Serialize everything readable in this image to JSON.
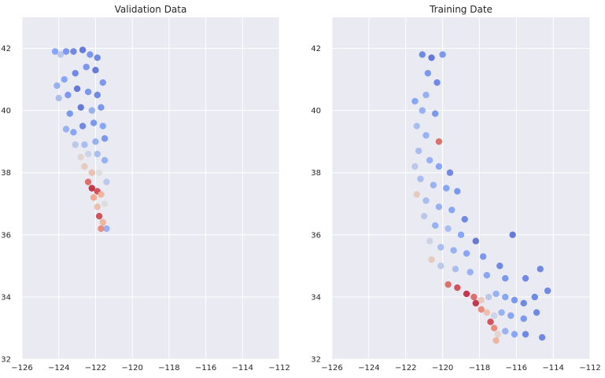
{
  "chart_data": [
    {
      "type": "scatter",
      "title": "Validation Data",
      "xlim": [
        -126,
        -112
      ],
      "ylim": [
        32,
        43
      ],
      "xticks": [
        -126,
        -124,
        -122,
        -120,
        -118,
        -116,
        -114,
        -112
      ],
      "yticks": [
        32,
        34,
        36,
        38,
        40,
        42
      ],
      "xtick_labels": [
        "−126",
        "−124",
        "−122",
        "−120",
        "−118",
        "−116",
        "−114",
        "−112"
      ],
      "ytick_labels": [
        "32",
        "34",
        "36",
        "38",
        "40",
        "42"
      ],
      "grid": true,
      "colormap": "coolwarm",
      "points": [
        {
          "x": -124.2,
          "y": 41.9,
          "c": 0.25
        },
        {
          "x": -123.9,
          "y": 41.8,
          "c": 0.4
        },
        {
          "x": -123.6,
          "y": 41.9,
          "c": 0.2
        },
        {
          "x": -123.2,
          "y": 41.9,
          "c": 0.15
        },
        {
          "x": -122.7,
          "y": 41.95,
          "c": 0.1
        },
        {
          "x": -122.3,
          "y": 41.8,
          "c": 0.2
        },
        {
          "x": -121.9,
          "y": 41.7,
          "c": 0.15
        },
        {
          "x": -122.0,
          "y": 41.3,
          "c": 0.1
        },
        {
          "x": -122.5,
          "y": 41.4,
          "c": 0.2
        },
        {
          "x": -123.1,
          "y": 41.2,
          "c": 0.15
        },
        {
          "x": -123.7,
          "y": 41.0,
          "c": 0.25
        },
        {
          "x": -124.1,
          "y": 40.8,
          "c": 0.3
        },
        {
          "x": -124.0,
          "y": 40.4,
          "c": 0.35
        },
        {
          "x": -123.5,
          "y": 40.5,
          "c": 0.2
        },
        {
          "x": -123.0,
          "y": 40.7,
          "c": 0.1
        },
        {
          "x": -122.4,
          "y": 40.6,
          "c": 0.2
        },
        {
          "x": -121.9,
          "y": 40.5,
          "c": 0.15
        },
        {
          "x": -121.6,
          "y": 40.9,
          "c": 0.2
        },
        {
          "x": -121.7,
          "y": 40.1,
          "c": 0.2
        },
        {
          "x": -122.2,
          "y": 40.0,
          "c": 0.3
        },
        {
          "x": -122.8,
          "y": 40.1,
          "c": 0.1
        },
        {
          "x": -123.4,
          "y": 39.9,
          "c": 0.2
        },
        {
          "x": -123.6,
          "y": 39.4,
          "c": 0.3
        },
        {
          "x": -123.2,
          "y": 39.3,
          "c": 0.25
        },
        {
          "x": -122.7,
          "y": 39.5,
          "c": 0.15
        },
        {
          "x": -122.1,
          "y": 39.6,
          "c": 0.2
        },
        {
          "x": -121.6,
          "y": 39.5,
          "c": 0.25
        },
        {
          "x": -121.5,
          "y": 39.1,
          "c": 0.2
        },
        {
          "x": -122.0,
          "y": 39.0,
          "c": 0.3
        },
        {
          "x": -122.6,
          "y": 38.9,
          "c": 0.35
        },
        {
          "x": -123.1,
          "y": 38.9,
          "c": 0.4
        },
        {
          "x": -122.8,
          "y": 38.5,
          "c": 0.55
        },
        {
          "x": -122.4,
          "y": 38.6,
          "c": 0.45
        },
        {
          "x": -121.9,
          "y": 38.6,
          "c": 0.35
        },
        {
          "x": -121.5,
          "y": 38.4,
          "c": 0.3
        },
        {
          "x": -122.6,
          "y": 38.2,
          "c": 0.6
        },
        {
          "x": -122.2,
          "y": 38.0,
          "c": 0.65
        },
        {
          "x": -121.8,
          "y": 38.0,
          "c": 0.5
        },
        {
          "x": -121.4,
          "y": 37.7,
          "c": 0.4
        },
        {
          "x": -122.4,
          "y": 37.7,
          "c": 0.85
        },
        {
          "x": -122.2,
          "y": 37.5,
          "c": 0.95
        },
        {
          "x": -121.9,
          "y": 37.4,
          "c": 0.9
        },
        {
          "x": -122.1,
          "y": 37.2,
          "c": 0.75
        },
        {
          "x": -121.7,
          "y": 37.3,
          "c": 0.7
        },
        {
          "x": -121.5,
          "y": 37.0,
          "c": 0.5
        },
        {
          "x": -121.9,
          "y": 36.9,
          "c": 0.65
        },
        {
          "x": -121.8,
          "y": 36.6,
          "c": 0.9
        },
        {
          "x": -121.6,
          "y": 36.4,
          "c": 0.7
        },
        {
          "x": -121.4,
          "y": 36.2,
          "c": 0.3
        },
        {
          "x": -121.7,
          "y": 36.2,
          "c": 0.8
        }
      ]
    },
    {
      "type": "scatter",
      "title": "Training Date",
      "xlim": [
        -126,
        -112
      ],
      "ylim": [
        32,
        43
      ],
      "xticks": [
        -126,
        -124,
        -122,
        -120,
        -118,
        -116,
        -114,
        -112
      ],
      "yticks": [
        32,
        34,
        36,
        38,
        40,
        42
      ],
      "xtick_labels": [
        "−126",
        "−124",
        "−122",
        "−120",
        "−118",
        "−116",
        "−114",
        "−112"
      ],
      "ytick_labels": [
        "32",
        "34",
        "36",
        "38",
        "40",
        "42"
      ],
      "grid": true,
      "colormap": "coolwarm",
      "points": [
        {
          "x": -121.1,
          "y": 41.8,
          "c": 0.15
        },
        {
          "x": -120.6,
          "y": 41.7,
          "c": 0.1
        },
        {
          "x": -120.0,
          "y": 41.8,
          "c": 0.2
        },
        {
          "x": -120.8,
          "y": 41.2,
          "c": 0.2
        },
        {
          "x": -120.3,
          "y": 40.9,
          "c": 0.15
        },
        {
          "x": -120.9,
          "y": 40.5,
          "c": 0.3
        },
        {
          "x": -121.5,
          "y": 40.3,
          "c": 0.25
        },
        {
          "x": -121.1,
          "y": 40.0,
          "c": 0.3
        },
        {
          "x": -120.4,
          "y": 39.9,
          "c": 0.2
        },
        {
          "x": -121.4,
          "y": 39.5,
          "c": 0.35
        },
        {
          "x": -120.9,
          "y": 39.2,
          "c": 0.3
        },
        {
          "x": -120.2,
          "y": 39.0,
          "c": 0.85
        },
        {
          "x": -121.3,
          "y": 38.7,
          "c": 0.35
        },
        {
          "x": -120.7,
          "y": 38.4,
          "c": 0.3
        },
        {
          "x": -121.5,
          "y": 38.2,
          "c": 0.4
        },
        {
          "x": -120.2,
          "y": 38.2,
          "c": 0.25
        },
        {
          "x": -119.6,
          "y": 38.0,
          "c": 0.15
        },
        {
          "x": -121.2,
          "y": 37.8,
          "c": 0.35
        },
        {
          "x": -120.5,
          "y": 37.6,
          "c": 0.3
        },
        {
          "x": -119.8,
          "y": 37.5,
          "c": 0.25
        },
        {
          "x": -119.2,
          "y": 37.4,
          "c": 0.2
        },
        {
          "x": -121.4,
          "y": 37.3,
          "c": 0.6
        },
        {
          "x": -120.9,
          "y": 37.1,
          "c": 0.35
        },
        {
          "x": -120.2,
          "y": 36.9,
          "c": 0.3
        },
        {
          "x": -119.5,
          "y": 36.8,
          "c": 0.25
        },
        {
          "x": -118.8,
          "y": 36.5,
          "c": 0.15
        },
        {
          "x": -121.0,
          "y": 36.6,
          "c": 0.4
        },
        {
          "x": -120.4,
          "y": 36.3,
          "c": 0.3
        },
        {
          "x": -119.7,
          "y": 36.2,
          "c": 0.35
        },
        {
          "x": -119.0,
          "y": 36.0,
          "c": 0.25
        },
        {
          "x": -118.2,
          "y": 35.8,
          "c": 0.1
        },
        {
          "x": -116.2,
          "y": 36.0,
          "c": 0.1
        },
        {
          "x": -120.7,
          "y": 35.8,
          "c": 0.45
        },
        {
          "x": -120.1,
          "y": 35.6,
          "c": 0.35
        },
        {
          "x": -119.4,
          "y": 35.5,
          "c": 0.3
        },
        {
          "x": -118.7,
          "y": 35.4,
          "c": 0.25
        },
        {
          "x": -117.8,
          "y": 35.3,
          "c": 0.2
        },
        {
          "x": -116.9,
          "y": 35.0,
          "c": 0.15
        },
        {
          "x": -120.6,
          "y": 35.2,
          "c": 0.6
        },
        {
          "x": -120.1,
          "y": 35.0,
          "c": 0.4
        },
        {
          "x": -119.3,
          "y": 34.9,
          "c": 0.35
        },
        {
          "x": -118.5,
          "y": 34.8,
          "c": 0.3
        },
        {
          "x": -117.6,
          "y": 34.7,
          "c": 0.25
        },
        {
          "x": -116.6,
          "y": 34.6,
          "c": 0.2
        },
        {
          "x": -115.5,
          "y": 34.6,
          "c": 0.15
        },
        {
          "x": -114.7,
          "y": 34.9,
          "c": 0.15
        },
        {
          "x": -119.7,
          "y": 34.4,
          "c": 0.85
        },
        {
          "x": -119.2,
          "y": 34.3,
          "c": 0.9
        },
        {
          "x": -118.7,
          "y": 34.1,
          "c": 0.95
        },
        {
          "x": -118.3,
          "y": 34.0,
          "c": 0.85
        },
        {
          "x": -117.9,
          "y": 33.9,
          "c": 0.6
        },
        {
          "x": -117.5,
          "y": 34.0,
          "c": 0.4
        },
        {
          "x": -117.1,
          "y": 34.1,
          "c": 0.3
        },
        {
          "x": -116.6,
          "y": 34.0,
          "c": 0.25
        },
        {
          "x": -116.1,
          "y": 33.9,
          "c": 0.2
        },
        {
          "x": -115.6,
          "y": 33.8,
          "c": 0.15
        },
        {
          "x": -115.0,
          "y": 34.0,
          "c": 0.15
        },
        {
          "x": -114.3,
          "y": 34.2,
          "c": 0.15
        },
        {
          "x": -118.2,
          "y": 33.8,
          "c": 0.95
        },
        {
          "x": -117.9,
          "y": 33.6,
          "c": 0.8
        },
        {
          "x": -117.6,
          "y": 33.5,
          "c": 0.65
        },
        {
          "x": -117.2,
          "y": 33.4,
          "c": 0.45
        },
        {
          "x": -116.8,
          "y": 33.5,
          "c": 0.3
        },
        {
          "x": -116.3,
          "y": 33.4,
          "c": 0.25
        },
        {
          "x": -115.6,
          "y": 33.3,
          "c": 0.2
        },
        {
          "x": -114.9,
          "y": 33.5,
          "c": 0.15
        },
        {
          "x": -117.4,
          "y": 33.2,
          "c": 0.9
        },
        {
          "x": -117.2,
          "y": 33.0,
          "c": 0.8
        },
        {
          "x": -117.0,
          "y": 32.8,
          "c": 0.55
        },
        {
          "x": -116.6,
          "y": 32.9,
          "c": 0.3
        },
        {
          "x": -116.1,
          "y": 32.8,
          "c": 0.25
        },
        {
          "x": -115.5,
          "y": 32.8,
          "c": 0.15
        },
        {
          "x": -114.6,
          "y": 32.7,
          "c": 0.15
        },
        {
          "x": -117.1,
          "y": 32.6,
          "c": 0.7
        }
      ]
    }
  ]
}
